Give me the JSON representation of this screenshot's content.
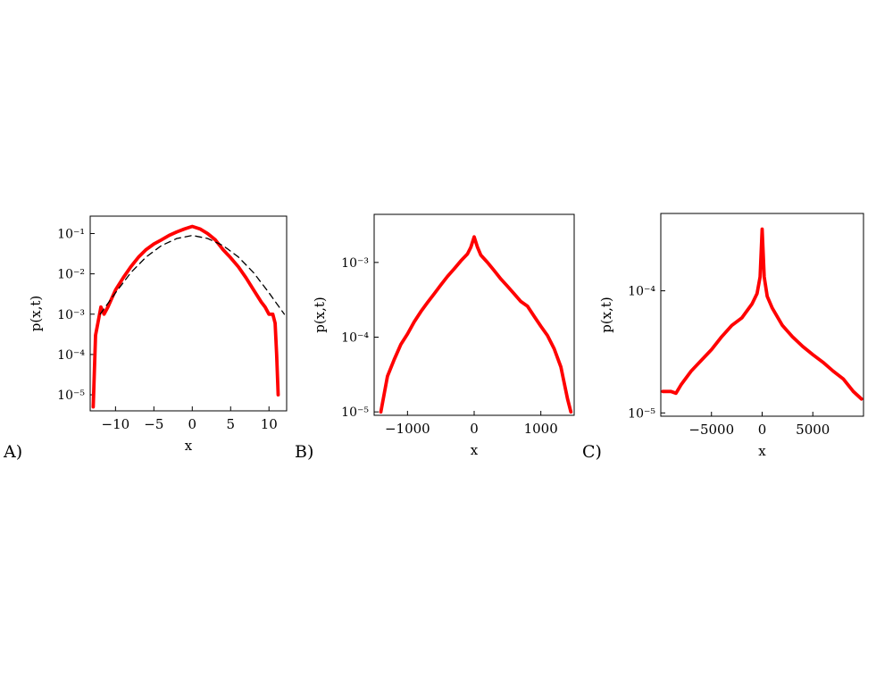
{
  "chart_data": [
    {
      "panel_label": "A)",
      "type": "line",
      "xlabel": "x",
      "ylabel": "p(x,t)",
      "xlim": [
        -13.3,
        12.3
      ],
      "ylim": [
        4e-06,
        0.27
      ],
      "yscale": "log",
      "xticks": [
        -10,
        -5,
        0,
        5,
        10
      ],
      "xtick_labels": [
        "−10",
        "−5",
        "0",
        "5",
        "10"
      ],
      "yticks": [
        1e-05,
        0.0001,
        0.001,
        0.01,
        0.1
      ],
      "ytick_labels": [
        "10⁻⁵",
        "10⁻⁴",
        "10⁻³",
        "10⁻²",
        "10⁻¹"
      ],
      "series": [
        {
          "color": "#ff0000",
          "style": "solid",
          "x": [
            -12.9,
            -12.6,
            -12.3,
            -11.9,
            -11.5,
            -11.0,
            -10.0,
            -9.0,
            -8.0,
            -7.0,
            -6.0,
            -5.0,
            -4.0,
            -3.0,
            -2.0,
            -1.0,
            0.0,
            1.0,
            2.0,
            3.0,
            4.0,
            5.0,
            6.0,
            7.0,
            8.0,
            9.0,
            9.5,
            10.0,
            10.5,
            10.8,
            11.0,
            11.2
          ],
          "y": [
            5e-06,
            0.0003,
            0.0006,
            0.0015,
            0.001,
            0.0015,
            0.004,
            0.008,
            0.015,
            0.026,
            0.04,
            0.055,
            0.07,
            0.09,
            0.11,
            0.13,
            0.15,
            0.13,
            0.1,
            0.07,
            0.04,
            0.025,
            0.015,
            0.008,
            0.004,
            0.002,
            0.0015,
            0.001,
            0.001,
            0.0006,
            0.0001,
            1e-05
          ]
        },
        {
          "color": "#000000",
          "style": "dashed",
          "x": [
            -12,
            -10,
            -8,
            -6,
            -4,
            -2,
            0,
            2,
            4,
            6,
            8,
            10,
            12
          ],
          "y": [
            0.001,
            0.0034,
            0.0107,
            0.0262,
            0.0503,
            0.0756,
            0.0896,
            0.0756,
            0.0503,
            0.0262,
            0.0107,
            0.0034,
            0.001
          ]
        }
      ]
    },
    {
      "panel_label": "B)",
      "type": "line",
      "xlabel": "x",
      "ylabel": "p(x,t)",
      "xlim": [
        -1500,
        1500
      ],
      "ylim": [
        9e-06,
        0.0044
      ],
      "yscale": "log",
      "xticks": [
        -1000,
        0,
        1000
      ],
      "xtick_labels": [
        "−1000",
        "0",
        "1000"
      ],
      "yticks": [
        1e-05,
        0.0001,
        0.001
      ],
      "ytick_labels": [
        "10⁻⁵",
        "10⁻⁴",
        "10⁻³"
      ],
      "series": [
        {
          "color": "#ff0000",
          "style": "solid",
          "x": [
            -1400,
            -1300,
            -1200,
            -1100,
            -1000,
            -900,
            -800,
            -700,
            -600,
            -500,
            -400,
            -300,
            -200,
            -100,
            -50,
            0,
            50,
            100,
            200,
            300,
            400,
            500,
            600,
            700,
            800,
            900,
            1000,
            1100,
            1200,
            1300,
            1400,
            1450
          ],
          "y": [
            1e-05,
            3e-05,
            5e-05,
            8e-05,
            0.00011,
            0.00016,
            0.00022,
            0.00029,
            0.00038,
            0.0005,
            0.00065,
            0.00082,
            0.00105,
            0.0013,
            0.0016,
            0.0022,
            0.0016,
            0.00125,
            0.001,
            0.00078,
            0.0006,
            0.00048,
            0.00038,
            0.0003,
            0.00026,
            0.00019,
            0.00014,
            0.000105,
            7e-05,
            4e-05,
            1.5e-05,
            1e-05
          ]
        }
      ]
    },
    {
      "panel_label": "C)",
      "type": "line",
      "xlabel": "x",
      "ylabel": "p(x,t)",
      "xlim": [
        -10000,
        10000
      ],
      "ylim": [
        9.4e-06,
        0.00043
      ],
      "yscale": "log",
      "xticks": [
        -5000,
        0,
        5000
      ],
      "xtick_labels": [
        "−5000",
        "0",
        "5000"
      ],
      "yticks": [
        1e-05,
        0.0001
      ],
      "ytick_labels": [
        "10⁻⁵",
        "10⁻⁴"
      ],
      "series": [
        {
          "color": "#ff0000",
          "style": "solid",
          "x": [
            -9800,
            -9000,
            -8500,
            -8000,
            -7000,
            -6000,
            -5000,
            -4000,
            -3000,
            -2000,
            -1000,
            -500,
            -200,
            0,
            200,
            500,
            1000,
            2000,
            3000,
            4000,
            5000,
            6000,
            7000,
            8000,
            9000,
            9800
          ],
          "y": [
            1.5e-05,
            1.5e-05,
            1.45e-05,
            1.7e-05,
            2.2e-05,
            2.7e-05,
            3.3e-05,
            4.2e-05,
            5.2e-05,
            6e-05,
            7.8e-05,
            9.5e-05,
            0.00013,
            0.00032,
            0.00013,
            9e-05,
            7.2e-05,
            5.2e-05,
            4.2e-05,
            3.5e-05,
            3e-05,
            2.6e-05,
            2.2e-05,
            1.9e-05,
            1.5e-05,
            1.3e-05
          ]
        }
      ]
    }
  ]
}
